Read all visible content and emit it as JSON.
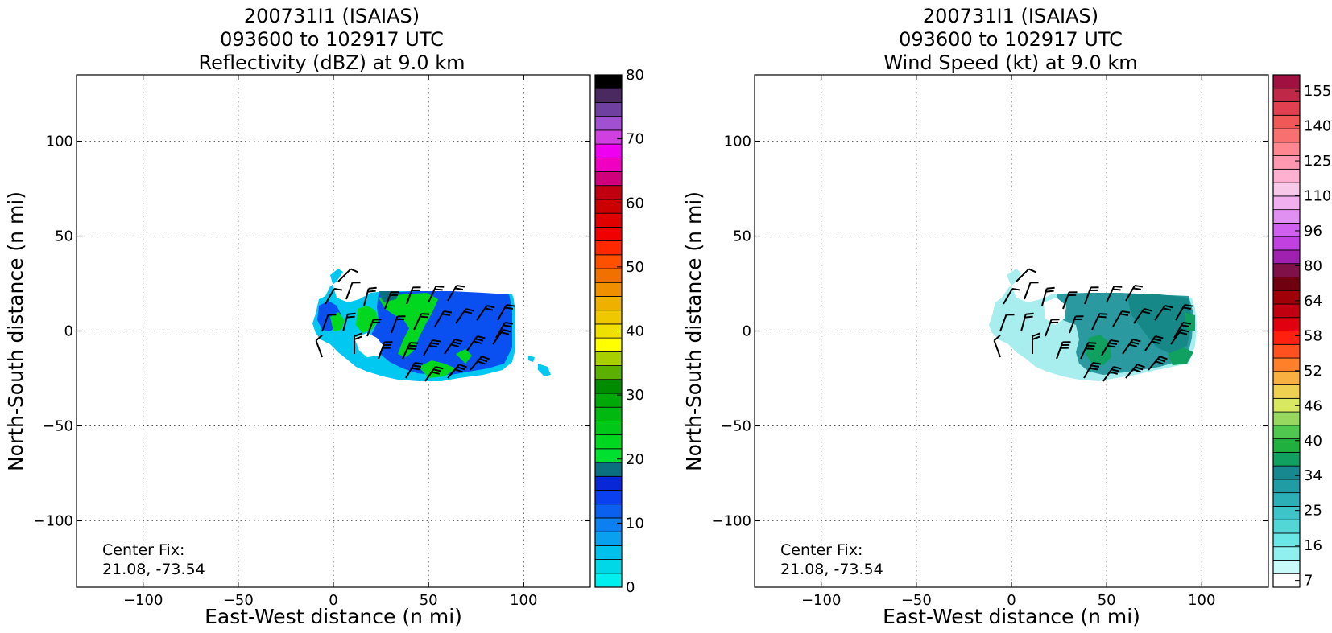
{
  "chart_data": [
    {
      "type": "heatmap",
      "title": [
        "200731I1 (ISAIAS)",
        "093600 to 102917 UTC",
        "Reflectivity (dBZ) at 9.0 km"
      ],
      "xlabel": "East-West distance (n mi)",
      "ylabel": "North-South distance (n mi)",
      "xlim": [
        -135,
        135
      ],
      "ylim": [
        -135,
        135
      ],
      "xticks": [
        -100,
        -50,
        0,
        50,
        100
      ],
      "yticks": [
        -100,
        -50,
        0,
        50,
        100
      ],
      "xtick_labels": [
        "−100",
        "−50",
        "0",
        "50",
        "100"
      ],
      "ytick_labels": [
        "−100",
        "−50",
        "0",
        "50",
        "100"
      ],
      "grid": true,
      "annotation": [
        "Center Fix:",
        "21.08, -73.54"
      ],
      "colorbar": {
        "min": 0,
        "max": 80,
        "ticks": [
          0,
          10,
          20,
          30,
          40,
          50,
          60,
          70,
          80
        ],
        "tick_labels": [
          "0",
          "10",
          "20",
          "30",
          "40",
          "50",
          "60",
          "70",
          "80"
        ],
        "colors": [
          "#00f0f0",
          "#00d8e8",
          "#00c0ec",
          "#0aa0f0",
          "#0c80f0",
          "#0c60f0",
          "#0a40f0",
          "#0828d8",
          "#0a7080",
          "#00e030",
          "#00d820",
          "#00c818",
          "#00b810",
          "#00a808",
          "#008c00",
          "#5cb000",
          "#a8d000",
          "#ffff00",
          "#f0e000",
          "#f0c800",
          "#f0b000",
          "#f09000",
          "#f07000",
          "#ff5000",
          "#ff2800",
          "#f00000",
          "#e00000",
          "#cc0000",
          "#c00010",
          "#d0007c",
          "#f000c0",
          "#f000f0",
          "#d040e0",
          "#a050d0",
          "#7040a0",
          "#4a2860",
          "#000000"
        ]
      },
      "field_colors": {
        "low": "#00c8f0",
        "mid": "#0a50f0",
        "high": "#00d820",
        "teal": "#0a7080"
      },
      "barbs": "wind barbs plotted over the echo region"
    },
    {
      "type": "heatmap",
      "title": [
        "200731I1 (ISAIAS)",
        "093600 to 102917 UTC",
        "Wind Speed (kt) at 9.0 km"
      ],
      "xlabel": "East-West distance (n mi)",
      "ylabel": "North-South distance (n mi)",
      "xlim": [
        -135,
        135
      ],
      "ylim": [
        -135,
        135
      ],
      "xticks": [
        -100,
        -50,
        0,
        50,
        100
      ],
      "yticks": [
        -100,
        -50,
        0,
        50,
        100
      ],
      "xtick_labels": [
        "−100",
        "−50",
        "0",
        "50",
        "100"
      ],
      "ytick_labels": [
        "−100",
        "−50",
        "0",
        "50",
        "100"
      ],
      "grid": true,
      "annotation": [
        "Center Fix:",
        "21.08, -73.54"
      ],
      "colorbar": {
        "ticks": [
          7,
          16,
          25,
          34,
          40,
          46,
          52,
          58,
          64,
          80,
          96,
          110,
          125,
          140,
          155
        ],
        "tick_labels": [
          "7",
          "16",
          "25",
          "34",
          "40",
          "46",
          "52",
          "58",
          "64",
          "80",
          "96",
          "110",
          "125",
          "140",
          "155"
        ],
        "colors": [
          "#ffffff",
          "#c8fafa",
          "#90f0f0",
          "#6ae6e6",
          "#52d6d6",
          "#3cc4c8",
          "#2cb0b8",
          "#209ca4",
          "#188890",
          "#10a060",
          "#20b040",
          "#50c850",
          "#98d860",
          "#d8e860",
          "#f0d050",
          "#f8b040",
          "#ff8028",
          "#ff5020",
          "#ff2010",
          "#e00010",
          "#c00010",
          "#a00008",
          "#700010",
          "#801048",
          "#a020b0",
          "#c040e0",
          "#d060f0",
          "#e090f0",
          "#f0b0f0",
          "#f8c8e8",
          "#ffb0d0",
          "#ff98b0",
          "#ff8890",
          "#f87070",
          "#f05858",
          "#e04050",
          "#c02848",
          "#a01040"
        ]
      },
      "field_colors": {
        "light": "#a8eeee",
        "mid": "#2a9aa0",
        "dark": "#168888",
        "green": "#10a060"
      },
      "barbs": "wind barbs plotted over the echo region"
    }
  ]
}
